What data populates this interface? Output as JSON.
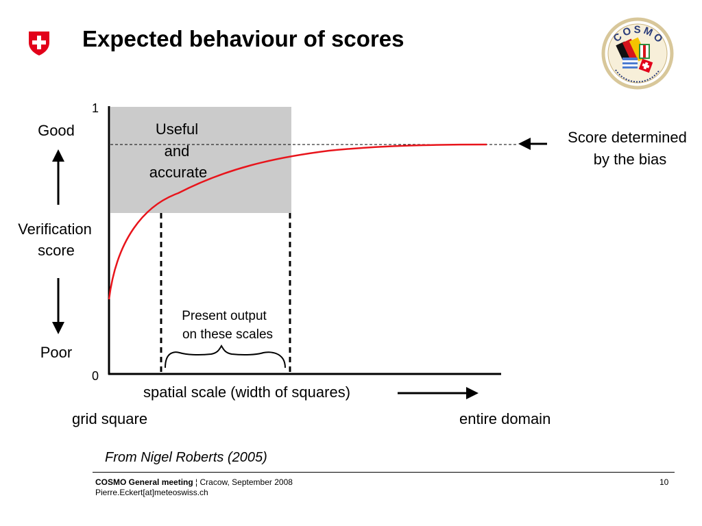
{
  "header": {
    "title": "Expected behaviour of scores",
    "logo_left_icon": "swiss-shield-icon",
    "logo_right_icon": "cosmo-consortium-logo",
    "logo_right_text": "COSMO"
  },
  "diagram": {
    "y_top_value": "1",
    "y_bottom_value": "0",
    "label_good": "Good",
    "label_poor": "Poor",
    "label_score_line1": "Verification",
    "label_score_line2": "score",
    "box_label_line1": "Useful",
    "box_label_line2": "and",
    "box_label_line3": "accurate",
    "bias_label_line1": "Score determined",
    "bias_label_line2": "by the bias",
    "present_line1": "Present output",
    "present_line2": "on these scales",
    "x_axis_label": "spatial scale (width of squares)",
    "x_left_label": "grid square",
    "x_right_label": "entire domain",
    "colors": {
      "curve": "#e8141b",
      "box": "#cbcbcb"
    }
  },
  "source_credit": "From Nigel Roberts (2005)",
  "footer": {
    "meeting_bold": "COSMO General meeting",
    "separator": " ¦ ",
    "meeting_rest": "Cracow, September 2008",
    "email": "Pierre.Eckert[at]meteoswiss.ch",
    "page_number": "10"
  }
}
